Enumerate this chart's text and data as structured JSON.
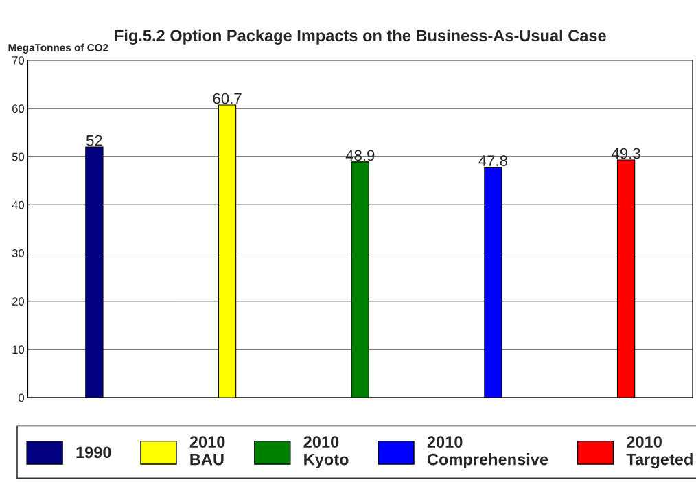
{
  "chart_data": {
    "type": "bar",
    "title": "Fig.5.2 Option Package Impacts on the Business-As-Usual Case",
    "ylabel": "MegaTonnes of CO2",
    "categories": [
      null,
      null,
      null,
      null,
      null
    ],
    "series": [
      {
        "name": "1990",
        "color": "#000080",
        "values": [
          52,
          null,
          null,
          null,
          null
        ]
      },
      {
        "name": "2010\nBAU",
        "color": "#ffff00",
        "values": [
          null,
          60.7,
          null,
          null,
          null
        ]
      },
      {
        "name": "2010\nKyoto",
        "color": "#008000",
        "values": [
          null,
          null,
          48.9,
          null,
          null
        ]
      },
      {
        "name": "2010\nComprehensive",
        "color": "#0000ff",
        "values": [
          null,
          null,
          null,
          47.8,
          null
        ]
      },
      {
        "name": "2010\nTargeted",
        "color": "#ff0000",
        "values": [
          null,
          null,
          null,
          null,
          49.3
        ]
      }
    ],
    "ylim": [
      0,
      70
    ],
    "yticks": [
      0,
      10,
      20,
      30,
      40,
      50,
      60,
      70
    ],
    "grid": "y",
    "legend": "bottom",
    "data_labels": true
  }
}
